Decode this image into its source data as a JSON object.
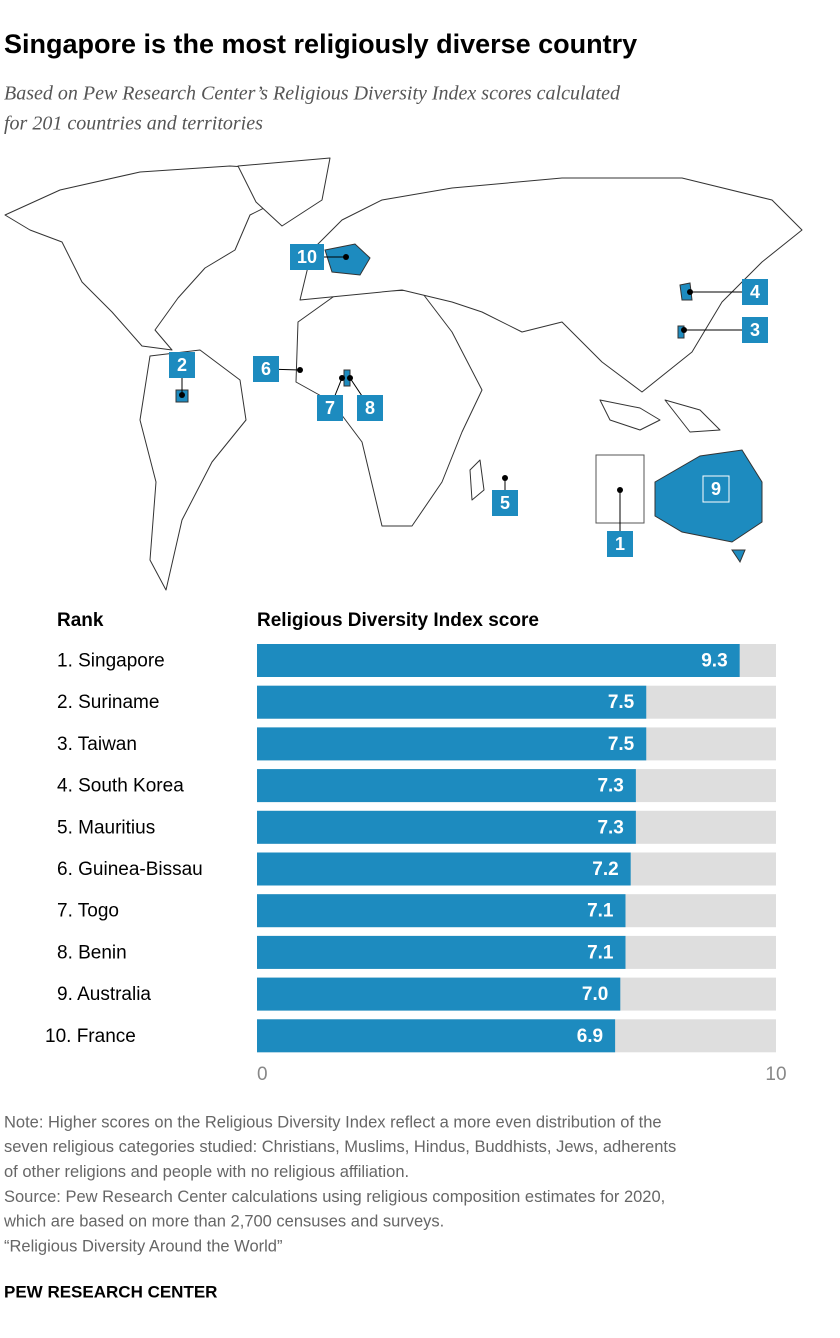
{
  "title": "Singapore is the most religiously diverse country",
  "subtitle": [
    "Based on Pew Research Center’s Religious Diversity Index scores calculated",
    "for 201 countries and territories"
  ],
  "map": {
    "labels": [
      "1",
      "2",
      "3",
      "4",
      "5",
      "6",
      "7",
      "8",
      "9",
      "10"
    ]
  },
  "chart_data": {
    "type": "bar",
    "orientation": "horizontal",
    "category_header": "Rank",
    "value_header": "Religious Diversity Index score",
    "categories": [
      "1. Singapore",
      "2. Suriname",
      "3. Taiwan",
      "4. South Korea",
      "5. Mauritius",
      "6. Guinea-Bissau",
      "7. Togo",
      "8. Benin",
      "9. Australia",
      "10. France"
    ],
    "values": [
      9.3,
      7.5,
      7.5,
      7.3,
      7.3,
      7.2,
      7.1,
      7.1,
      7.0,
      6.9
    ],
    "value_labels": [
      "9.3",
      "7.5",
      "7.5",
      "7.3",
      "7.3",
      "7.2",
      "7.1",
      "7.1",
      "7.0",
      "6.9"
    ],
    "color": "#1d8bbf",
    "track_color": "#dedede",
    "xlim": [
      0,
      10
    ],
    "xticks": [
      0,
      10
    ]
  },
  "notes": [
    "Note: Higher scores on the Religious Diversity Index reflect a more even distribution of the",
    "seven religious categories studied: Christians, Muslims, Hindus, Buddhists, Jews, adherents",
    "of other religions and people with no religious affiliation.",
    "Source: Pew Research Center calculations using religious composition estimates for 2020,",
    "which are based on more than 2,700 censuses and surveys.",
    "“Religious Diversity Around the World”"
  ],
  "footer": "PEW RESEARCH CENTER"
}
